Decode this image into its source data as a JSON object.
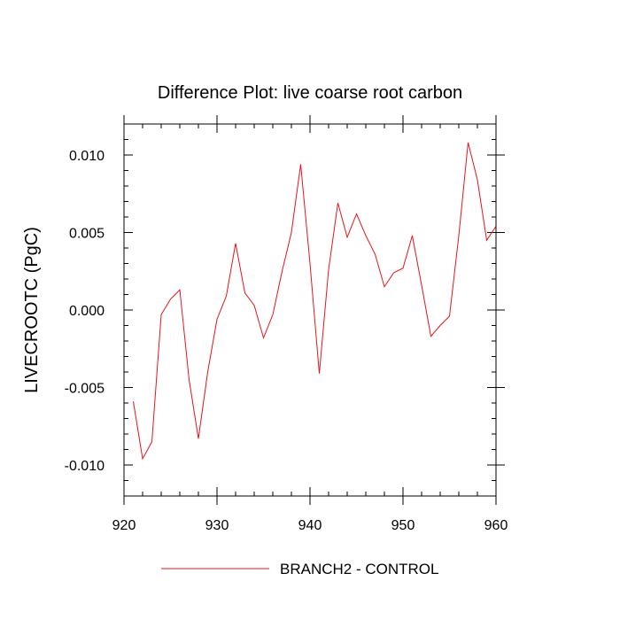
{
  "chart_data": {
    "type": "line",
    "title": "Difference Plot: live coarse root carbon",
    "ylabel": "LIVECROOTC  (PgC)",
    "xlabel": "",
    "xlim": [
      920,
      960
    ],
    "ylim": [
      -0.012,
      0.012
    ],
    "x_ticks": [
      920,
      930,
      940,
      950,
      960
    ],
    "x_tick_labels": [
      "920",
      "930",
      "940",
      "950",
      "960"
    ],
    "y_ticks": [
      -0.01,
      -0.005,
      0.0,
      0.005,
      0.01
    ],
    "y_tick_labels": [
      "-0.010",
      "-0.005",
      "0.000",
      "0.005",
      "0.010"
    ],
    "grid": false,
    "legend_position": "bottom",
    "series": [
      {
        "name": "BRANCH2 - CONTROL",
        "color": "#e8141b",
        "x": [
          921,
          922,
          923,
          924,
          925,
          926,
          927,
          928,
          929,
          930,
          931,
          932,
          933,
          934,
          935,
          936,
          937,
          938,
          939,
          940,
          941,
          942,
          943,
          944,
          945,
          946,
          947,
          948,
          949,
          950,
          951,
          952,
          953,
          954,
          955,
          956,
          957,
          958,
          959,
          960
        ],
        "y": [
          -0.0059,
          -0.0096,
          -0.0085,
          -0.0003,
          0.0007,
          0.0013,
          -0.0045,
          -0.0083,
          -0.004,
          -0.0006,
          0.0009,
          0.0043,
          0.0011,
          0.0003,
          -0.0018,
          -0.0003,
          0.0025,
          0.005,
          0.0094,
          0.003,
          -0.0041,
          0.0026,
          0.0069,
          0.0047,
          0.0062,
          0.0048,
          0.0036,
          0.0015,
          0.0024,
          0.0027,
          0.0048,
          0.0016,
          -0.0017,
          -0.001,
          -0.0004,
          0.0048,
          0.0108,
          0.0084,
          0.0045,
          0.0054
        ]
      }
    ]
  }
}
